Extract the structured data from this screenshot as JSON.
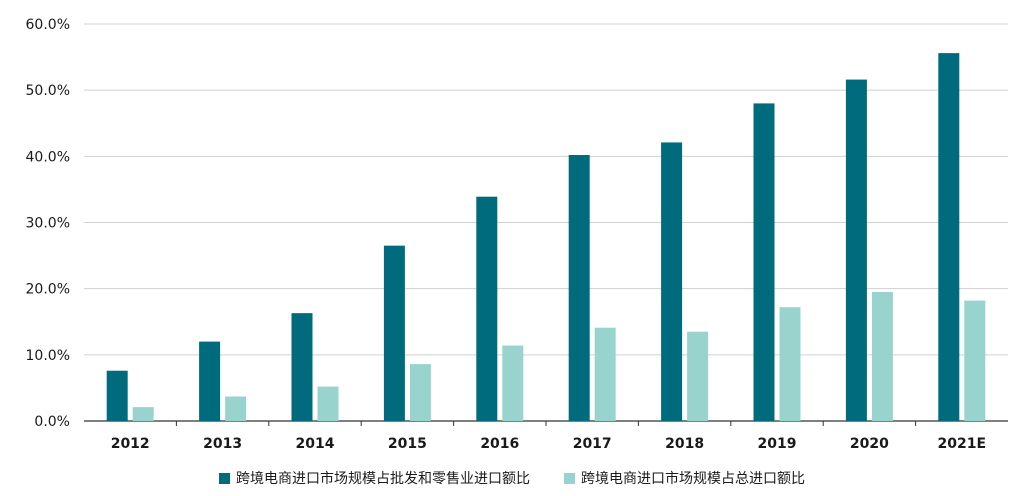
{
  "chart_data": {
    "type": "bar",
    "categories": [
      "2012",
      "2013",
      "2014",
      "2015",
      "2016",
      "2017",
      "2018",
      "2019",
      "2020",
      "2021E"
    ],
    "series": [
      {
        "name": "跨境电商进口市场规模占批发和零售业进口额比",
        "color": "#006b7d",
        "values": [
          7.6,
          12.0,
          16.3,
          26.5,
          33.9,
          40.2,
          42.1,
          48.0,
          51.6,
          55.6
        ]
      },
      {
        "name": "跨境电商进口市场规模占总进口额比",
        "color": "#99d3cd",
        "values": [
          2.1,
          3.7,
          5.2,
          8.6,
          11.4,
          14.1,
          13.5,
          17.2,
          19.5,
          18.2
        ]
      }
    ],
    "y_ticks": [
      "0.0%",
      "10.0%",
      "20.0%",
      "30.0%",
      "40.0%",
      "50.0%",
      "60.0%"
    ],
    "ylim": [
      0,
      60
    ],
    "grid": true,
    "legend_position": "bottom",
    "title": "",
    "xlabel": "",
    "ylabel": ""
  }
}
